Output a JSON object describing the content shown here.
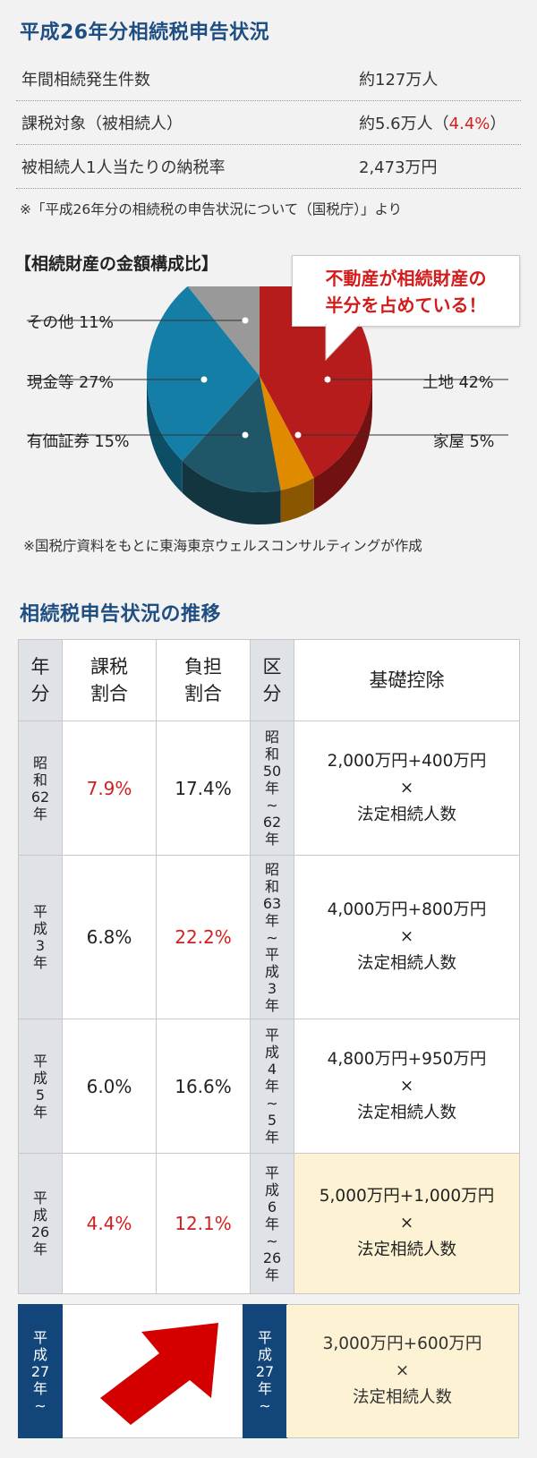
{
  "summary": {
    "title": "平成26年分相続税申告状況",
    "rows": [
      {
        "label": "年間相続発生件数",
        "value": "約127万人",
        "highlight": ""
      },
      {
        "label": "課税対象（被相続人）",
        "value": "約5.6万人（",
        "highlight": "4.4%",
        "suffix": "）"
      },
      {
        "label": "被相続人1人当たりの納税率",
        "value": "2,473万円",
        "highlight": ""
      }
    ],
    "source": "※「平成26年分の相続税の申告状況について（国税庁）」より"
  },
  "chart_data": {
    "type": "pie",
    "title": "【相続財産の金額構成比】",
    "callout": [
      "不動産が相続財産の",
      "半分を占めている！"
    ],
    "slices": [
      {
        "name": "土地",
        "value": 42,
        "label": "土地 42%",
        "color": "#b71c1c"
      },
      {
        "name": "家屋",
        "value": 5,
        "label": "家屋 5%",
        "color": "#e08a00"
      },
      {
        "name": "有価証券",
        "value": 15,
        "label": "有価証券 15%",
        "color": "#1f5668"
      },
      {
        "name": "現金等",
        "value": 27,
        "label": "現金等 27%",
        "color": "#157ea6"
      },
      {
        "name": "その他",
        "value": 11,
        "label": "その他 11%",
        "color": "#999999"
      }
    ],
    "source": "※国税庁資料をもとに東海東京ウェルスコンサルティングが作成"
  },
  "history": {
    "title": "相続税申告状況の推移",
    "headers": {
      "year": "年分",
      "tax_rate": [
        "課税",
        "割合"
      ],
      "burden": [
        "負担",
        "割合"
      ],
      "period": "区分",
      "deduction": "基礎控除"
    },
    "rows": [
      {
        "year": "昭和62年",
        "tax_rate": "7.9%",
        "tax_red": true,
        "burden": "17.4%",
        "burden_red": false,
        "period": "昭和50年〜62年",
        "deduction": [
          "2,000万円+400万円",
          "×",
          "法定相続人数"
        ],
        "cream": false
      },
      {
        "year": "平成3年",
        "tax_rate": "6.8%",
        "tax_red": false,
        "burden": "22.2%",
        "burden_red": true,
        "period": "昭和63年〜平成3年",
        "deduction": [
          "4,000万円+800万円",
          "×",
          "法定相続人数"
        ],
        "cream": false
      },
      {
        "year": "平成5年",
        "tax_rate": "6.0%",
        "tax_red": false,
        "burden": "16.6%",
        "burden_red": false,
        "period": "平成4年〜5年",
        "deduction": [
          "4,800万円+950万円",
          "×",
          "法定相続人数"
        ],
        "cream": false
      },
      {
        "year": "平成26年",
        "tax_rate": "4.4%",
        "tax_red": true,
        "burden": "12.1%",
        "burden_red": true,
        "period": "平成6年〜26年",
        "deduction": [
          "5,000万円+1,000万円",
          "×",
          "法定相続人数"
        ],
        "cream": true
      }
    ],
    "future": {
      "year": "平成27年〜",
      "period": "平成27年〜",
      "deduction": [
        "3,000万円+600万円",
        "×",
        "法定相続人数"
      ]
    }
  }
}
